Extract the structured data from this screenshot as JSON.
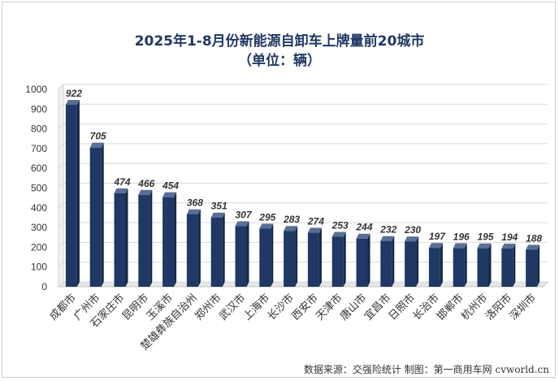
{
  "title": "2025年1-8月份新能源自卸车上牌量前20城市",
  "subtitle": "（单位：辆）",
  "source": "数据来源：交强险统计 制图：第一商用车网 cvworld.cn",
  "chart_data": {
    "type": "bar",
    "title": "2025年1-8月份新能源自卸车上牌量前20城市",
    "subtitle": "（单位：辆）",
    "categories": [
      "成都市",
      "广州市",
      "石家庄市",
      "昆明市",
      "玉溪市",
      "楚雄彝族自治州",
      "郑州市",
      "武汉市",
      "上海市",
      "长沙市",
      "西安市",
      "天津市",
      "唐山市",
      "宜昌市",
      "日照市",
      "长治市",
      "邯郸市",
      "杭州市",
      "洛阳市",
      "深圳市"
    ],
    "values": [
      922,
      705,
      474,
      466,
      454,
      368,
      351,
      307,
      295,
      283,
      274,
      253,
      244,
      232,
      230,
      197,
      196,
      195,
      194,
      188
    ],
    "ylim": [
      0,
      1000
    ],
    "yticks": [
      0,
      100,
      200,
      300,
      400,
      500,
      600,
      700,
      800,
      900,
      1000
    ],
    "grid": true,
    "bar_color": "#1f3864"
  }
}
